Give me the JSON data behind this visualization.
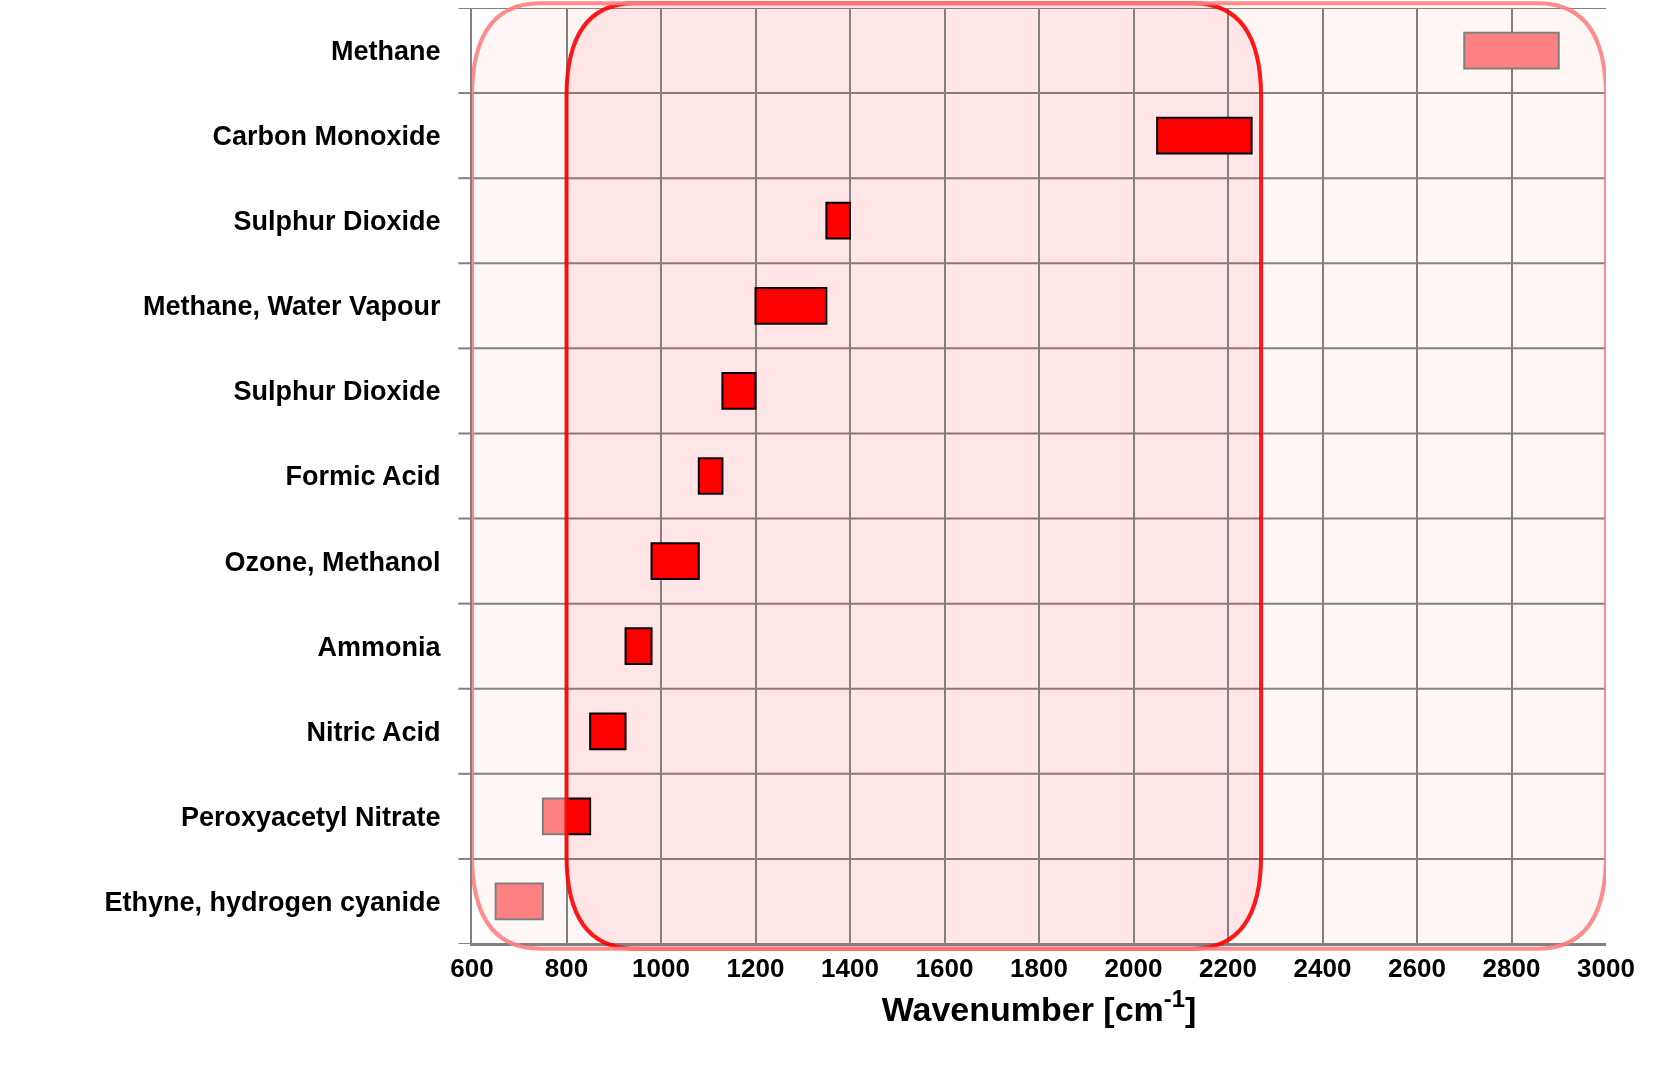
{
  "chart_data": {
    "type": "bar",
    "orientation": "horizontal",
    "xlabel": "Wavenumber [cm$^{-1}$]",
    "categories": [
      "Methane",
      "Carbon Monoxide",
      "Sulphur Dioxide",
      "Methane, Water Vapour",
      "Sulphur Dioxide",
      "Formic Acid",
      "Ozone, Methanol",
      "Ammonia",
      "Nitric Acid",
      "Peroxyacetyl Nitrate",
      "Ethyne, hydrogen cyanide"
    ],
    "series": [
      {
        "color": "#ff0000",
        "base": [
          null,
          2050,
          1350,
          1200,
          1130,
          1080,
          980,
          925,
          850,
          800,
          null
        ],
        "values": [
          null,
          200,
          50,
          150,
          70,
          50,
          100,
          55,
          75,
          50,
          null
        ]
      },
      {
        "color": "#ff8080",
        "base": [
          2700,
          null,
          null,
          null,
          null,
          null,
          null,
          null,
          null,
          750,
          650
        ],
        "values": [
          200,
          null,
          null,
          null,
          null,
          null,
          null,
          null,
          null,
          50,
          100
        ]
      }
    ],
    "xlim": [
      600,
      3000
    ],
    "xticks": [
      600,
      800,
      1000,
      1200,
      1400,
      1600,
      1800,
      2000,
      2200,
      2400,
      2600,
      2800,
      3000
    ],
    "grid": true,
    "bands": [
      {
        "axis": "x",
        "from": 800,
        "to": 2270,
        "color": "#ff0000"
      },
      {
        "axis": "x",
        "from": 600,
        "to": 3000,
        "color": "#ff8080"
      }
    ]
  }
}
